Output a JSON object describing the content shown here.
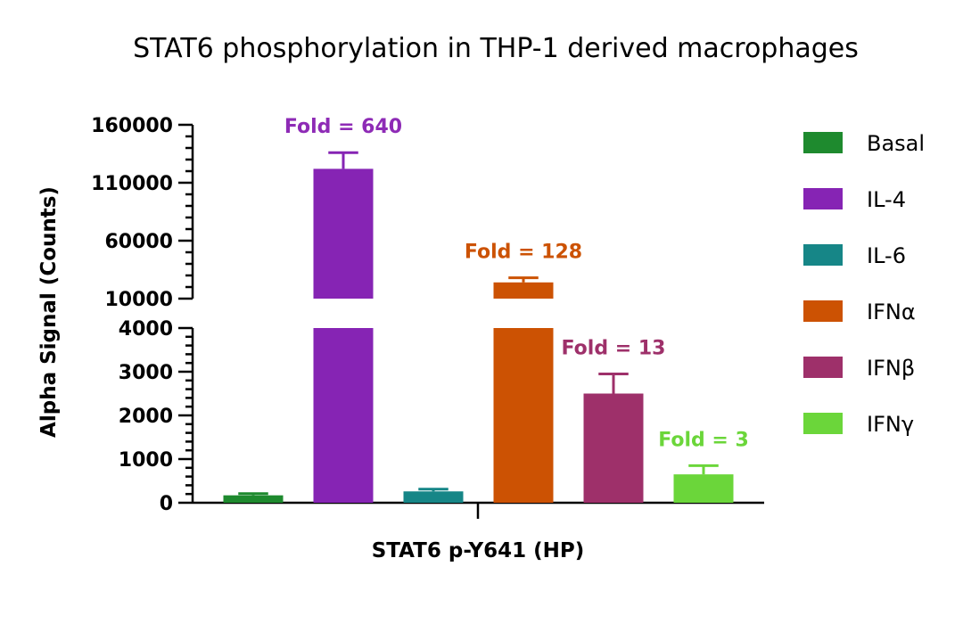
{
  "chart_data": {
    "type": "bar",
    "title": "STAT6 phosphorylation in THP-1 derived macrophages",
    "xlabel": "STAT6 p-Y641 (HP)",
    "ylabel": "Alpha Signal (Counts)",
    "y_axis_break": true,
    "ylim_lower": [
      0,
      4000
    ],
    "ylim_upper": [
      10000,
      160000
    ],
    "yticks_lower": [
      "0",
      "1000",
      "2000",
      "3000",
      "4000"
    ],
    "yticks_upper": [
      "10000",
      "60000",
      "110000",
      "160000"
    ],
    "legend_position": "right",
    "series": [
      {
        "name": "Basal",
        "value": 170,
        "error": 40,
        "color": "#1e8a2e",
        "fold_label": ""
      },
      {
        "name": "IL-4",
        "value": 122000,
        "error": 14000,
        "color": "#8624b4",
        "fold_label": "Fold = 640"
      },
      {
        "name": "IL-6",
        "value": 260,
        "error": 50,
        "color": "#168687",
        "fold_label": ""
      },
      {
        "name": "IFNα",
        "value": 24000,
        "error": 4000,
        "color": "#cc5203",
        "fold_label": "Fold = 128"
      },
      {
        "name": "IFNβ",
        "value": 2500,
        "error": 450,
        "color": "#9e306a",
        "fold_label": "Fold = 13"
      },
      {
        "name": "IFNγ",
        "value": 650,
        "error": 200,
        "color": "#6bd63a",
        "fold_label": "Fold = 3"
      }
    ]
  }
}
